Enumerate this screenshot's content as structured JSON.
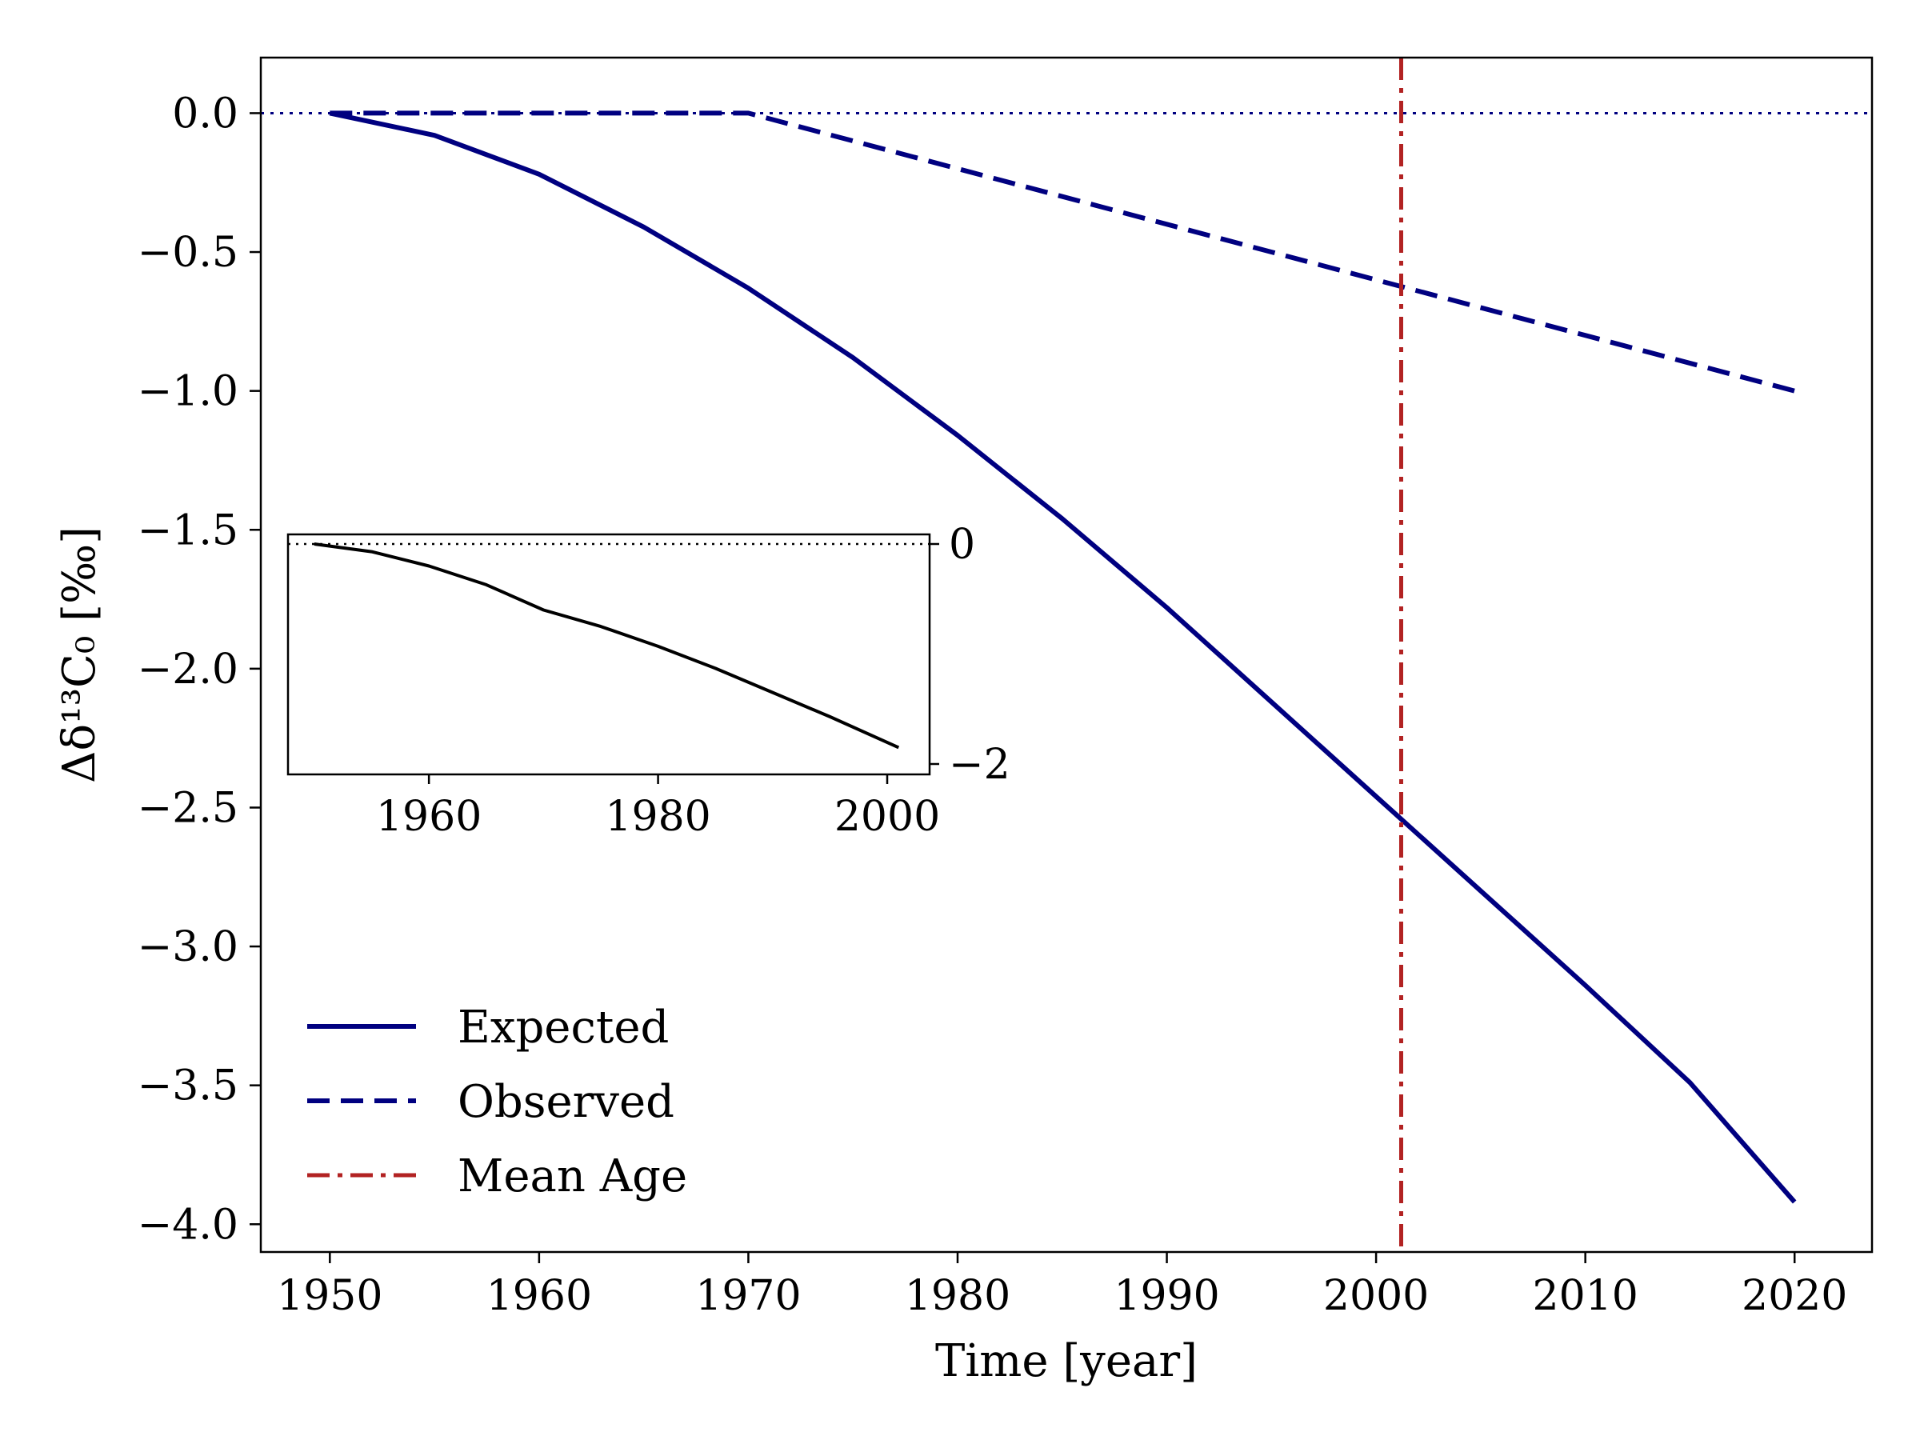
{
  "chart_data": {
    "type": "line",
    "title": "",
    "xlabel": "Time [year]",
    "ylabel": "Δδ¹³C₀ [‰]",
    "xlim": [
      1946.7,
      2023.7
    ],
    "ylim": [
      -4.1,
      0.2
    ],
    "x_ticks": [
      "1950",
      "1960",
      "1970",
      "1980",
      "1990",
      "2000",
      "2010",
      "2020"
    ],
    "y_ticks": [
      "0.0",
      "−0.5",
      "−1.0",
      "−1.5",
      "−2.0",
      "−2.5",
      "−3.0",
      "−3.5",
      "−4.0"
    ],
    "grid": false,
    "legend_position": "lower-left",
    "zero_reference_line": {
      "y": 0.0,
      "style": "dotted",
      "color": "#000080"
    },
    "series": [
      {
        "name": "Expected",
        "style": "solid",
        "color": "#000080",
        "x": [
          1950,
          1955,
          1960,
          1965,
          1970,
          1975,
          1980,
          1985,
          1990,
          1995,
          2000,
          2005,
          2010,
          2015,
          2020
        ],
        "y": [
          0.0,
          -0.08,
          -0.22,
          -0.41,
          -0.63,
          -0.88,
          -1.16,
          -1.46,
          -1.78,
          -2.12,
          -2.46,
          -2.8,
          -3.14,
          -3.49,
          -3.92
        ]
      },
      {
        "name": "Observed",
        "style": "dashed",
        "color": "#000080",
        "x": [
          1950,
          1970,
          2020
        ],
        "y": [
          0.0,
          0.0,
          -1.0
        ]
      },
      {
        "name": "Mean Age",
        "style": "dashdot",
        "color": "#b22222",
        "vertical_x": 2001.2
      }
    ],
    "inset": {
      "type": "line",
      "xlim": [
        1947.7,
        2003.7
      ],
      "ylim": [
        -2.0,
        0.0
      ],
      "x_ticks": [
        "1960",
        "1980",
        "2000"
      ],
      "y_ticks": [
        "0",
        "−2"
      ],
      "y_axis_side": "right",
      "zero_reference_line": {
        "y": 0.0,
        "style": "dotted",
        "color": "#000000"
      },
      "series": [
        {
          "style": "solid",
          "color": "#000000",
          "x": [
            1950,
            1955,
            1960,
            1965,
            1970,
            1975,
            1980,
            1985,
            1990,
            1995,
            2001
          ],
          "y": [
            0.0,
            -0.07,
            -0.2,
            -0.37,
            -0.6,
            -0.75,
            -0.93,
            -1.13,
            -1.35,
            -1.57,
            -1.85
          ]
        }
      ]
    }
  }
}
